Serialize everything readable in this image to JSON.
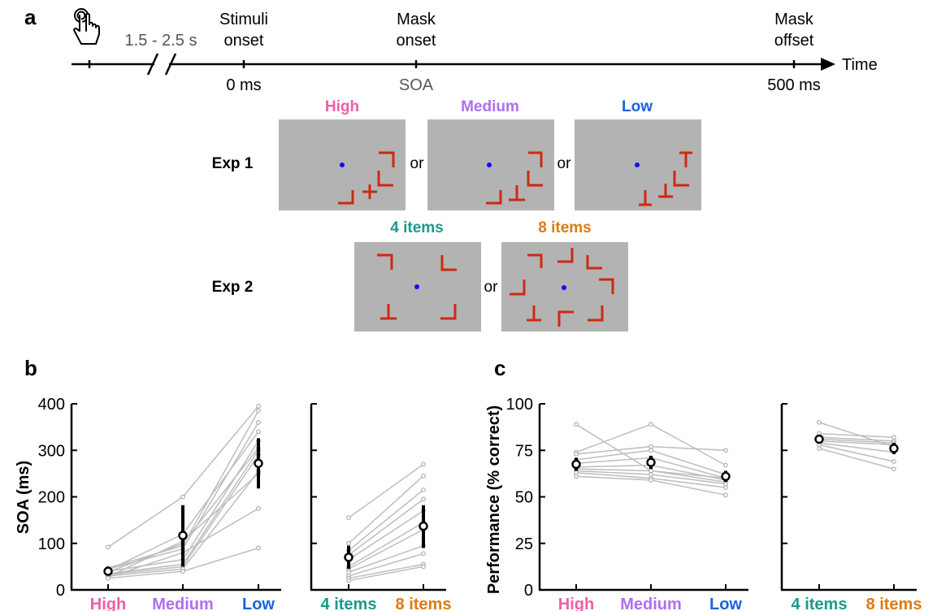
{
  "panels": {
    "a": "a",
    "b": "b",
    "c": "c"
  },
  "colors": {
    "high": "#ee5fa7",
    "medium": "#b06ef0",
    "low": "#1a63d8",
    "four_items": "#1a9a8c",
    "eight_items": "#de7a12",
    "stim_bg": "#b3b3b3",
    "target": "#cc2a10",
    "fixation": "#1010f0",
    "indiv_line": "#bdbdbd",
    "mean_line": "#000000"
  },
  "timeline": {
    "interval": "1.5 - 2.5 s",
    "stimuli_onset": [
      "Stimuli",
      "onset"
    ],
    "mask_onset": [
      "Mask",
      "onset"
    ],
    "mask_offset": [
      "Mask",
      "offset"
    ],
    "axis_label": "Time",
    "t0": "0 ms",
    "soa": "SOA",
    "t_end": "500 ms",
    "hand_icon": "hand-pointer-icon"
  },
  "exp1": {
    "label": "Exp 1",
    "conditions": [
      "High",
      "Medium",
      "Low"
    ],
    "or": "or"
  },
  "exp2": {
    "label": "Exp 2",
    "conditions": [
      "4 items",
      "8 items"
    ],
    "or": "or"
  },
  "chart_data": [
    {
      "panel": "b-left",
      "type": "line",
      "ylabel": "SOA (ms)",
      "ylim": [
        0,
        400
      ],
      "yticks": [
        "0",
        "100",
        "200",
        "300",
        "400"
      ],
      "categories": [
        "High",
        "Medium",
        "Low"
      ],
      "mean": [
        40,
        117,
        272
      ],
      "error": [
        [
          33,
          47
        ],
        [
          50,
          182
        ],
        [
          218,
          326
        ]
      ],
      "subjects": [
        [
          92,
          200,
          395
        ],
        [
          47,
          95,
          385
        ],
        [
          45,
          88,
          360
        ],
        [
          42,
          120,
          340
        ],
        [
          40,
          65,
          320
        ],
        [
          38,
          100,
          305
        ],
        [
          35,
          55,
          300
        ],
        [
          33,
          50,
          290
        ],
        [
          30,
          45,
          255
        ],
        [
          28,
          105,
          250
        ],
        [
          27,
          80,
          175
        ],
        [
          25,
          40,
          90
        ]
      ]
    },
    {
      "panel": "b-right",
      "type": "line",
      "ylim": [
        0,
        400
      ],
      "categories": [
        "4 items",
        "8 items"
      ],
      "mean": [
        70,
        137
      ],
      "error": [
        [
          45,
          95
        ],
        [
          90,
          182
        ]
      ],
      "subjects": [
        [
          155,
          270
        ],
        [
          100,
          245
        ],
        [
          85,
          215
        ],
        [
          75,
          195
        ],
        [
          65,
          170
        ],
        [
          50,
          145
        ],
        [
          45,
          130
        ],
        [
          38,
          95
        ],
        [
          30,
          78
        ],
        [
          25,
          55
        ],
        [
          20,
          50
        ]
      ]
    },
    {
      "panel": "c-left",
      "type": "line",
      "ylabel": "Performance (% correct)",
      "ylim": [
        0,
        100
      ],
      "yticks": [
        "0",
        "25",
        "50",
        "75",
        "100"
      ],
      "categories": [
        "High",
        "Medium",
        "Low"
      ],
      "mean": [
        67.5,
        68.5,
        61
      ],
      "error": [
        [
          64,
          71
        ],
        [
          65,
          72
        ],
        [
          58,
          64
        ]
      ],
      "subjects": [
        [
          89,
          64,
          60
        ],
        [
          74,
          89,
          67
        ],
        [
          73,
          77,
          75
        ],
        [
          70,
          75,
          62
        ],
        [
          68,
          71,
          60
        ],
        [
          66,
          67,
          59
        ],
        [
          65,
          64,
          58
        ],
        [
          64,
          62,
          57
        ],
        [
          63,
          60,
          55
        ],
        [
          61,
          59,
          51
        ]
      ]
    },
    {
      "panel": "c-right",
      "type": "line",
      "ylim": [
        0,
        100
      ],
      "categories": [
        "4 items",
        "8 items"
      ],
      "mean": [
        81,
        76
      ],
      "error": [
        [
          79,
          83
        ],
        [
          73,
          79
        ]
      ],
      "subjects": [
        [
          90,
          77
        ],
        [
          84,
          82
        ],
        [
          82,
          80
        ],
        [
          81,
          79
        ],
        [
          80,
          78
        ],
        [
          79,
          74
        ],
        [
          78,
          69
        ],
        [
          76,
          65
        ]
      ]
    }
  ]
}
